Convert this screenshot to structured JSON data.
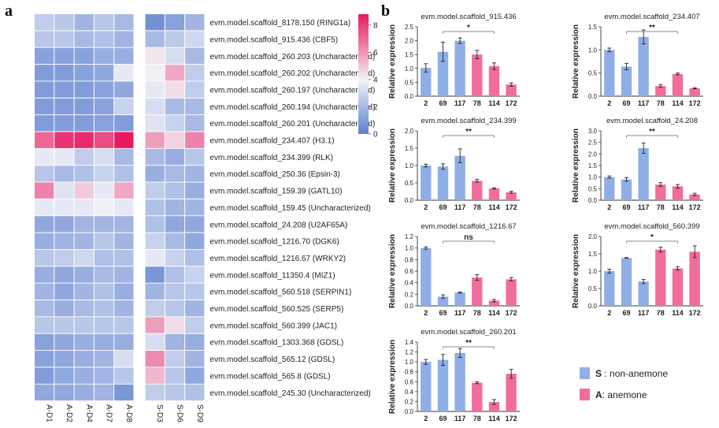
{
  "panel_labels": {
    "a": "a",
    "b": "b"
  },
  "legend": {
    "s_key": "S",
    "s_text": " : non-anemone",
    "a_key": "A",
    "a_text": ": anemone",
    "s_color": "#8faee6",
    "a_color": "#f06d9c"
  },
  "chart_data": [
    {
      "type": "heatmap",
      "columns": [
        "A-D1",
        "A-D2",
        "A-D4",
        "A-D7",
        "A-D8",
        "S-D3",
        "S-D6",
        "S-D9"
      ],
      "rows": [
        "evm.model.scaffold_8178.150 (RING1a)",
        "evm.model.scaffold_915.436 (CBF5)",
        "evm.model.scaffold_260.203 (Uncharacterized)",
        "evm.model.scaffold_260.202 (Uncharacterized)",
        "evm.model.scaffold_260.197 (Uncharacterized)",
        "evm.model.scaffold_260.194 (Uncharacterized)",
        "evm.model.scaffold_260.201 (Uncharacterized)",
        "evm.model.scaffold_234.407 (H3.1)",
        "evm.model.scaffold_234.399 (RLK)",
        "evm.model.scaffold_250.36 (Epsin-3)",
        "evm.model.scaffold_159.39 (GATL10)",
        "evm.model.scaffold_159.45 (Uncharacterized)",
        "evm.model.scaffold_24.208 (U2AF65A)",
        "evm.model.scaffold_1216.70 (DGK6)",
        "evm.model.scaffold_1216.67 (WRKY2)",
        "evm.model.scaffold_11350.4 (MIZ1)",
        "evm.model.scaffold_560.518 (SERPIN1)",
        "evm.model.scaffold_560.525 (SERP5)",
        "evm.model.scaffold_560.399 (JAC1)",
        "evm.model.scaffold_1303.368 (GDSL)",
        "evm.model.scaffold_565.12 (GDSL)",
        "evm.model.scaffold_565.8 (GDSL)",
        "evm.model.scaffold_245.30 (Uncharacterized)"
      ],
      "values": [
        [
          2.6,
          2.4,
          1.8,
          2.4,
          2.0,
          0.6,
          1.2,
          1.8
        ],
        [
          2.4,
          2.4,
          2.0,
          2.2,
          1.8,
          2.0,
          2.5,
          3.0
        ],
        [
          1.2,
          1.2,
          1.2,
          1.6,
          1.6,
          4.2,
          3.2,
          2.0
        ],
        [
          1.0,
          1.0,
          1.2,
          1.4,
          3.6,
          4.0,
          5.6,
          2.6
        ],
        [
          1.0,
          1.0,
          1.0,
          1.2,
          1.4,
          3.6,
          4.4,
          2.6
        ],
        [
          1.0,
          1.0,
          1.0,
          1.2,
          2.8,
          3.2,
          2.0,
          2.0
        ],
        [
          1.0,
          1.0,
          1.0,
          1.2,
          1.0,
          3.4,
          2.8,
          2.0
        ],
        [
          7.0,
          8.2,
          8.4,
          7.6,
          8.8,
          5.8,
          4.6,
          6.4
        ],
        [
          3.6,
          3.6,
          2.6,
          3.2,
          2.0,
          2.0,
          1.6,
          2.4
        ],
        [
          2.4,
          2.0,
          2.2,
          2.8,
          2.2,
          1.6,
          2.0,
          1.8
        ],
        [
          6.4,
          3.4,
          4.8,
          3.6,
          5.6,
          2.6,
          2.2,
          1.6
        ],
        [
          3.6,
          3.6,
          3.6,
          3.8,
          3.6,
          2.2,
          1.8,
          1.8
        ],
        [
          1.4,
          1.4,
          1.8,
          1.8,
          1.8,
          2.2,
          1.4,
          1.4
        ],
        [
          1.6,
          1.8,
          1.8,
          2.4,
          1.8,
          2.8,
          2.0,
          1.4
        ],
        [
          2.4,
          2.6,
          3.0,
          2.2,
          2.2,
          3.6,
          2.8,
          2.2
        ],
        [
          1.6,
          1.4,
          1.6,
          2.0,
          1.8,
          0.8,
          2.2,
          2.8
        ],
        [
          1.8,
          1.4,
          1.8,
          2.2,
          1.6,
          1.8,
          2.4,
          2.4
        ],
        [
          2.0,
          1.6,
          2.0,
          2.2,
          1.8,
          2.6,
          2.4,
          1.8
        ],
        [
          2.4,
          2.4,
          2.4,
          2.4,
          2.4,
          5.8,
          4.4,
          2.6
        ],
        [
          1.2,
          1.4,
          1.6,
          1.6,
          1.6,
          3.2,
          1.8,
          1.6
        ],
        [
          1.2,
          1.4,
          1.6,
          1.8,
          3.2,
          6.2,
          2.6,
          1.8
        ],
        [
          1.0,
          1.4,
          1.6,
          1.8,
          2.4,
          5.2,
          2.4,
          1.4
        ],
        [
          1.4,
          1.4,
          1.6,
          1.8,
          0.8,
          2.6,
          2.4,
          2.2
        ]
      ],
      "colorbar": {
        "min": 0,
        "max": 8.8,
        "ticks": [
          0,
          2,
          4,
          6,
          8
        ],
        "low_color": "#5b7fcf",
        "mid_color": "#f2f2f8",
        "high_color": "#e8195f"
      }
    },
    {
      "type": "bar",
      "title": "evm.model.scaffold_915.436",
      "ylabel": "Relative expression",
      "categories": [
        "2",
        "69",
        "117",
        "78",
        "114",
        "172"
      ],
      "values": [
        1.02,
        1.6,
        2.0,
        1.5,
        1.08,
        0.42
      ],
      "errors": [
        0.15,
        0.35,
        0.1,
        0.15,
        0.12,
        0.06
      ],
      "colors": [
        "s",
        "s",
        "s",
        "a",
        "a",
        "a"
      ],
      "ylim": [
        0,
        2.5
      ],
      "yticks": [
        "0.0",
        "0.5",
        "1.0",
        "1.5",
        "2.0",
        "2.5"
      ],
      "sig": "*",
      "sig_span": [
        1,
        4
      ]
    },
    {
      "type": "bar",
      "title": "evm.model.scaffold_234.407",
      "ylabel": "Relative expression",
      "categories": [
        "2",
        "69",
        "117",
        "78",
        "114",
        "172"
      ],
      "values": [
        1.0,
        0.64,
        1.28,
        0.22,
        0.48,
        0.17
      ],
      "errors": [
        0.04,
        0.07,
        0.15,
        0.03,
        0.02,
        0.01
      ],
      "colors": [
        "s",
        "s",
        "s",
        "a",
        "a",
        "a"
      ],
      "ylim": [
        0,
        1.5
      ],
      "yticks": [
        "0.0",
        "0.5",
        "1.0",
        "1.5"
      ],
      "sig": "**",
      "sig_span": [
        1,
        4
      ]
    },
    {
      "type": "bar",
      "title": "evm.model.scaffold_234.399",
      "ylabel": "Relative expression",
      "categories": [
        "2",
        "69",
        "117",
        "78",
        "114",
        "172"
      ],
      "values": [
        1.0,
        0.97,
        1.28,
        0.56,
        0.34,
        0.23
      ],
      "errors": [
        0.04,
        0.08,
        0.2,
        0.04,
        0.02,
        0.03
      ],
      "colors": [
        "s",
        "s",
        "s",
        "a",
        "a",
        "a"
      ],
      "ylim": [
        0,
        2.0
      ],
      "yticks": [
        "0.0",
        "0.5",
        "1.0",
        "1.5",
        "2.0"
      ],
      "sig": "**",
      "sig_span": [
        1,
        4
      ]
    },
    {
      "type": "bar",
      "title": "evm.model.scaffold_24.208",
      "ylabel": "Relative expression",
      "categories": [
        "2",
        "69",
        "117",
        "78",
        "114",
        "172"
      ],
      "values": [
        1.0,
        0.9,
        2.25,
        0.68,
        0.6,
        0.25
      ],
      "errors": [
        0.05,
        0.08,
        0.22,
        0.08,
        0.08,
        0.05
      ],
      "colors": [
        "s",
        "s",
        "s",
        "a",
        "a",
        "a"
      ],
      "ylim": [
        0,
        3.0
      ],
      "yticks": [
        "0.0",
        "0.5",
        "1.0",
        "1.5",
        "2.0",
        "2.5",
        "3.0"
      ],
      "sig": "**",
      "sig_span": [
        1,
        4
      ]
    },
    {
      "type": "bar",
      "title": "evm.model.scaffold_1216.67",
      "ylabel": "Relative expression",
      "categories": [
        "2",
        "69",
        "117",
        "78",
        "114",
        "172"
      ],
      "values": [
        1.0,
        0.16,
        0.23,
        0.49,
        0.09,
        0.46
      ],
      "errors": [
        0.02,
        0.03,
        0.01,
        0.05,
        0.02,
        0.03
      ],
      "colors": [
        "s",
        "s",
        "s",
        "a",
        "a",
        "a"
      ],
      "ylim": [
        0,
        1.2
      ],
      "yticks": [
        "0.0",
        "0.2",
        "0.4",
        "0.6",
        "0.8",
        "1.0",
        "1.2"
      ],
      "sig": "ns",
      "sig_span": [
        1,
        4
      ]
    },
    {
      "type": "bar",
      "title": "evm.model.scaffold_560.399",
      "ylabel": "Relative expression",
      "categories": [
        "2",
        "69",
        "117",
        "78",
        "114",
        "172"
      ],
      "values": [
        1.0,
        1.38,
        0.7,
        1.62,
        1.08,
        1.56
      ],
      "errors": [
        0.06,
        0.01,
        0.06,
        0.07,
        0.05,
        0.17
      ],
      "colors": [
        "s",
        "s",
        "s",
        "a",
        "a",
        "a"
      ],
      "ylim": [
        0,
        2.0
      ],
      "yticks": [
        "0.0",
        "0.5",
        "1.0",
        "1.5",
        "2.0"
      ],
      "sig": "*",
      "sig_span": [
        1,
        4
      ]
    },
    {
      "type": "bar",
      "title": "evm.model.scaffold_260.201",
      "ylabel": "Relative expression",
      "categories": [
        "2",
        "69",
        "117",
        "78",
        "114",
        "172"
      ],
      "values": [
        1.0,
        1.04,
        1.18,
        0.58,
        0.19,
        0.76
      ],
      "errors": [
        0.05,
        0.11,
        0.09,
        0.02,
        0.05,
        0.09
      ],
      "colors": [
        "s",
        "s",
        "s",
        "a",
        "a",
        "a"
      ],
      "ylim": [
        0,
        1.4
      ],
      "yticks": [
        "0.0",
        "0.2",
        "0.4",
        "0.6",
        "0.8",
        "1.0",
        "1.2",
        "1.4"
      ],
      "sig": "**",
      "sig_span": [
        1,
        4
      ]
    }
  ]
}
